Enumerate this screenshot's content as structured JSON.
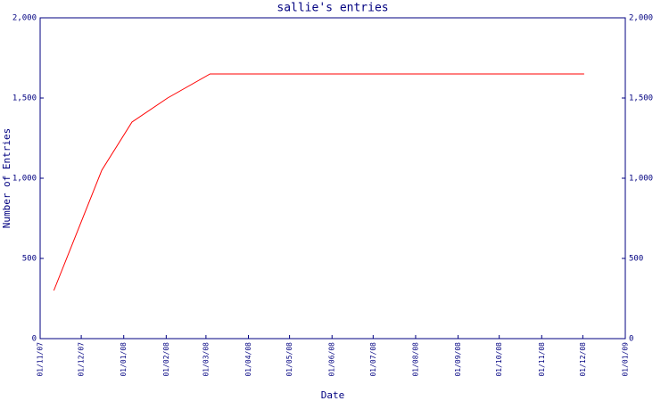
{
  "chart_data": {
    "type": "line",
    "title": "sallie's entries",
    "xlabel": "Date",
    "ylabel": "Number of Entries",
    "x": [
      "11/11/07",
      "16/12/07",
      "07/01/08",
      "02/02/08",
      "04/03/08",
      "02/12/08"
    ],
    "values": [
      300,
      1050,
      1350,
      1500,
      1650,
      1650
    ],
    "color": "#ff0000",
    "xlim": [
      "01/11/07",
      "01/01/09"
    ],
    "xticks": [
      "01/11/07",
      "01/12/07",
      "01/01/08",
      "01/02/08",
      "01/03/08",
      "01/04/08",
      "01/05/08",
      "01/06/08",
      "01/07/08",
      "01/08/08",
      "01/09/08",
      "01/10/08",
      "01/11/08",
      "01/12/08",
      "01/01/09"
    ],
    "ylim": [
      0,
      2000
    ],
    "yticks": [
      0,
      500,
      {
        "value": 1000,
        "label": "1,000"
      },
      {
        "value": 1500,
        "label": "1,500"
      },
      {
        "value": 2000,
        "label": "2,000"
      }
    ],
    "y2lim": [
      0,
      2000
    ],
    "y2ticks": [
      0,
      500,
      {
        "value": 1000,
        "label": "1,000"
      },
      {
        "value": 1500,
        "label": "1,500"
      },
      {
        "value": 2000,
        "label": "2,000"
      }
    ],
    "axis_color": "#000080"
  }
}
